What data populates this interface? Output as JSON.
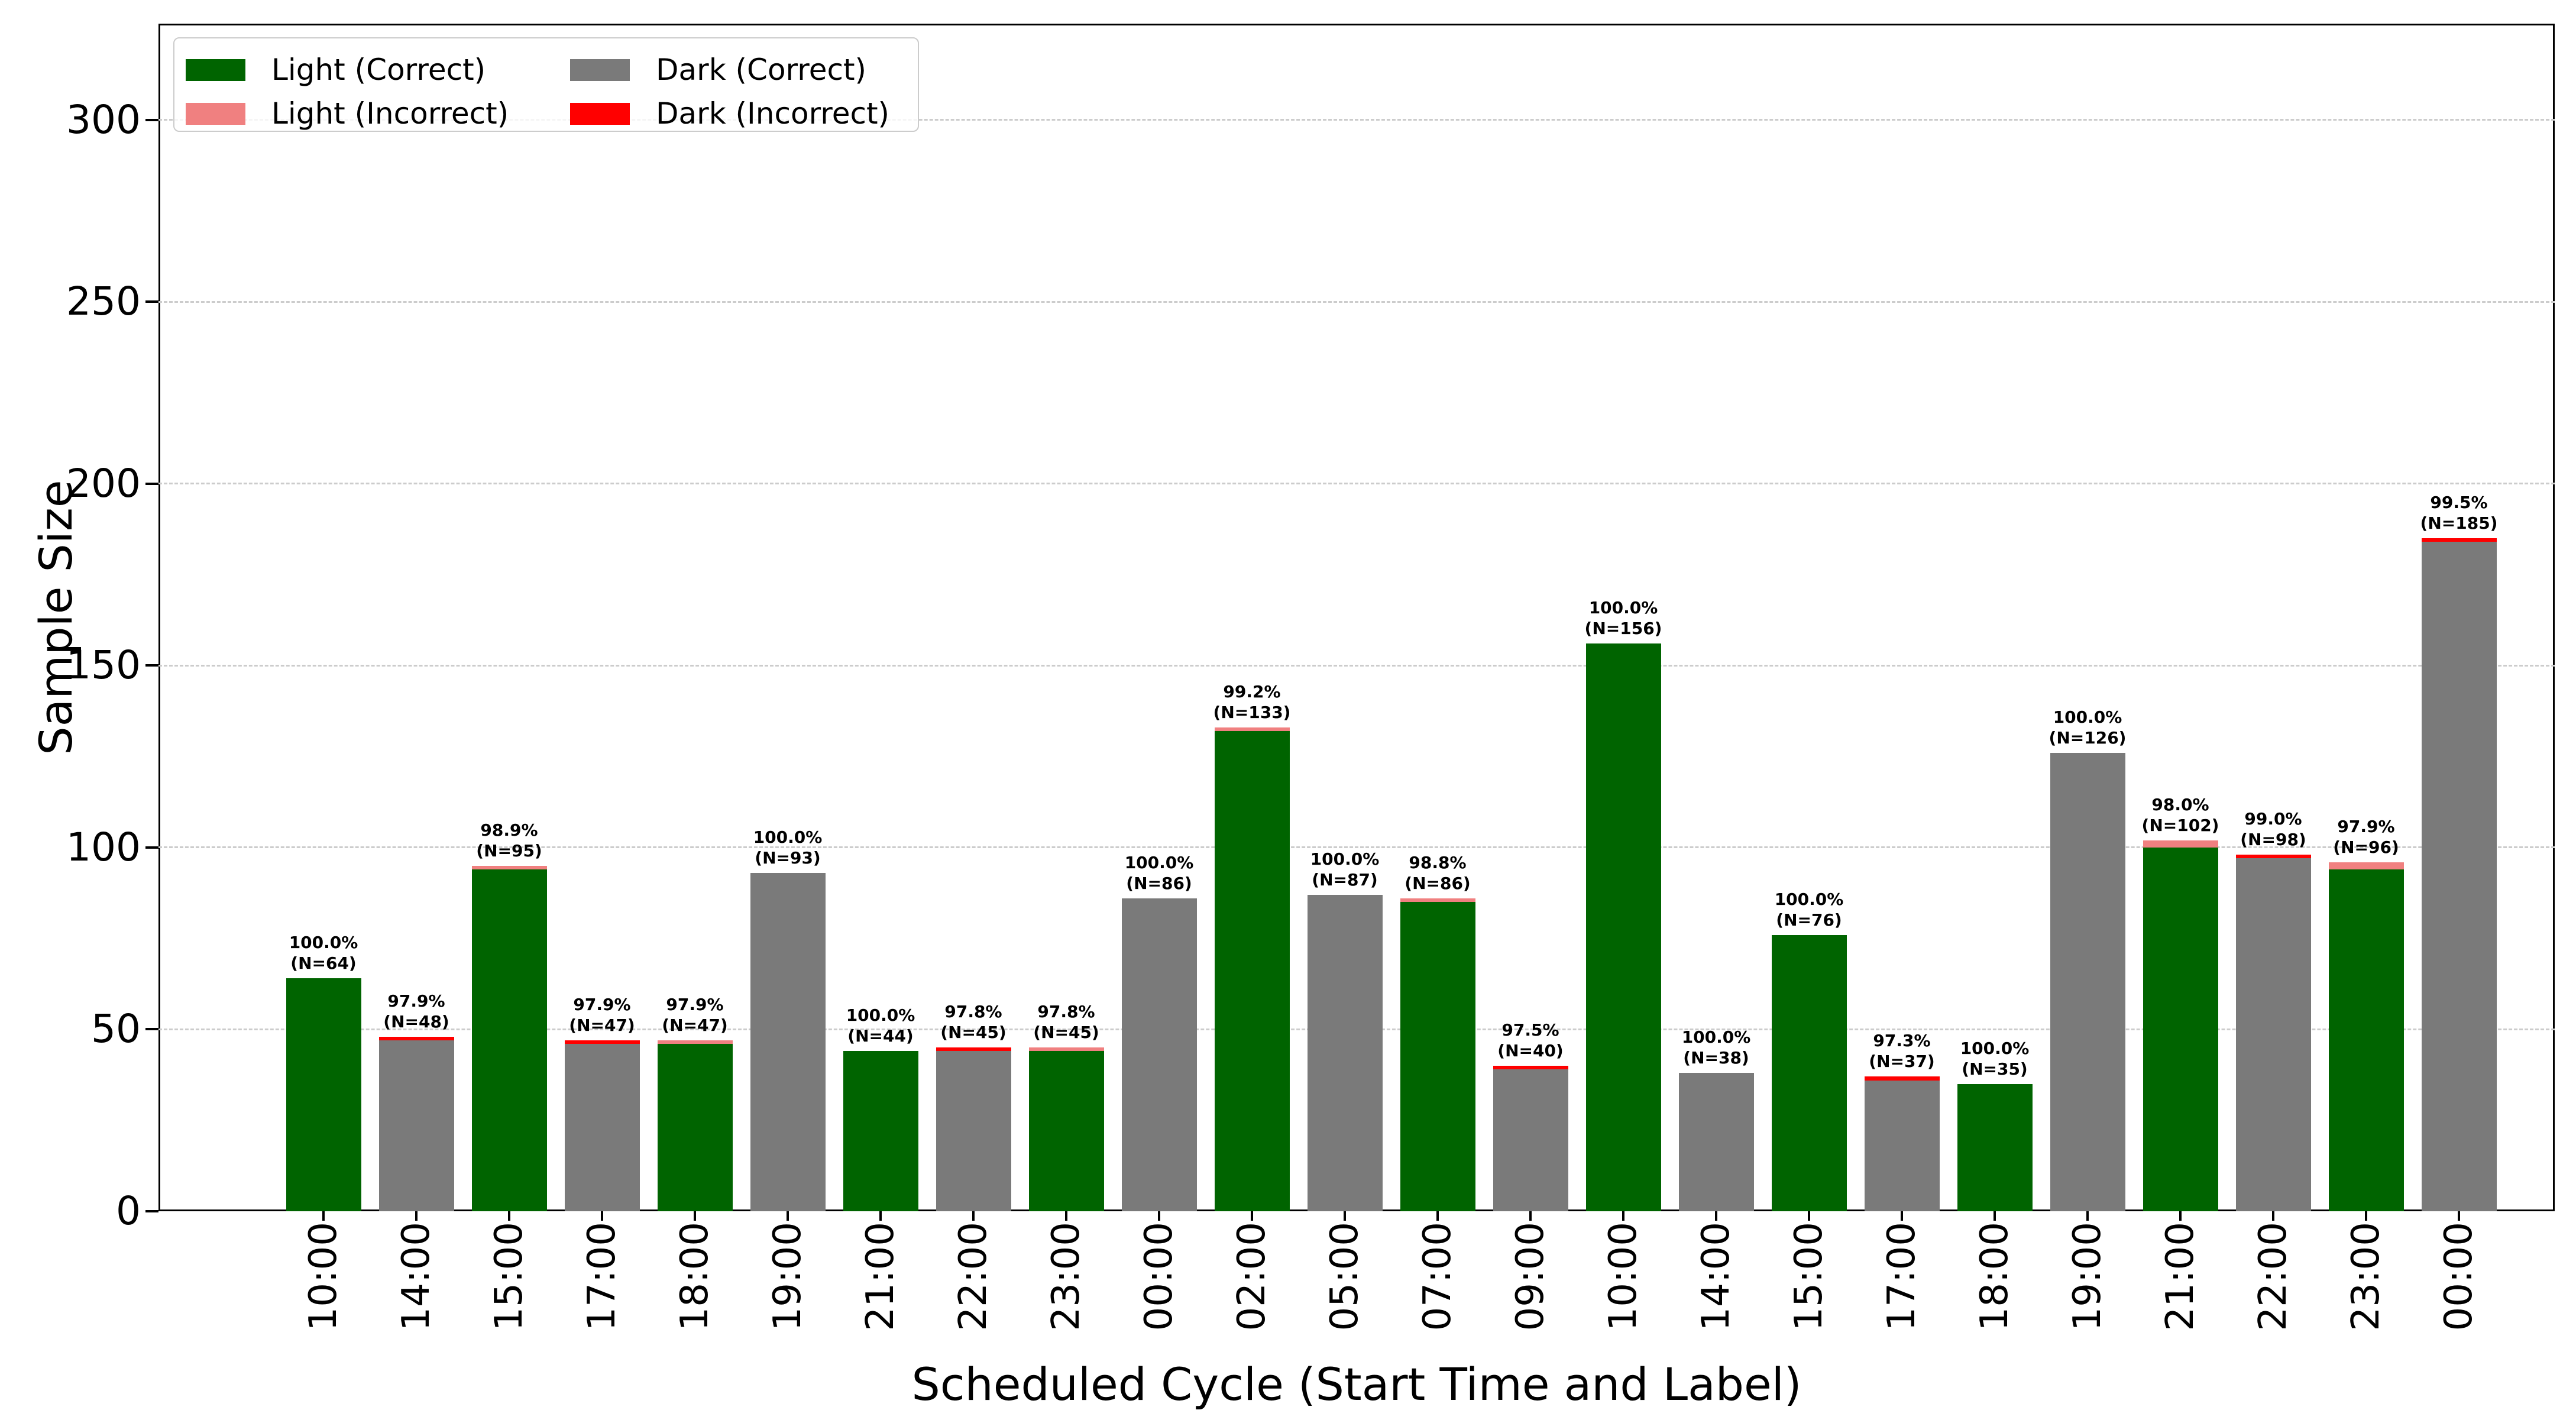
{
  "colors": {
    "light_correct": "#006400",
    "light_incorrect": "#f08080",
    "dark_correct": "#7a7a7a",
    "dark_incorrect": "#ff0000",
    "grid": "#cccccc",
    "axis": "#000000"
  },
  "chart_data": {
    "type": "bar",
    "title": "",
    "xlabel": "Scheduled Cycle (Start Time and Label)",
    "ylabel": "Sample Size",
    "ylim": [
      0,
      326
    ],
    "yticks": [
      0,
      50,
      100,
      150,
      200,
      250,
      300
    ],
    "grid": "horizontal dashed at each y tick",
    "legend": {
      "position": "upper left",
      "ncol": 2,
      "entries": [
        {
          "label": "Light (Correct)",
          "color_key": "light_correct"
        },
        {
          "label": "Light (Incorrect)",
          "color_key": "light_incorrect"
        },
        {
          "label": "Dark (Correct)",
          "color_key": "dark_correct"
        },
        {
          "label": "Dark (Incorrect)",
          "color_key": "dark_incorrect"
        }
      ]
    },
    "bars": [
      {
        "x": "10:00",
        "group": "light",
        "n": 64,
        "accuracy_pct": 100.0,
        "correct": 64,
        "incorrect": 0,
        "pct_label": "100.0%",
        "n_label": "(N=64)"
      },
      {
        "x": "14:00",
        "group": "dark",
        "n": 48,
        "accuracy_pct": 97.9,
        "correct": 47,
        "incorrect": 1,
        "pct_label": "97.9%",
        "n_label": "(N=48)"
      },
      {
        "x": "15:00",
        "group": "light",
        "n": 95,
        "accuracy_pct": 98.9,
        "correct": 94,
        "incorrect": 1,
        "pct_label": "98.9%",
        "n_label": "(N=95)"
      },
      {
        "x": "17:00",
        "group": "dark",
        "n": 47,
        "accuracy_pct": 97.9,
        "correct": 46,
        "incorrect": 1,
        "pct_label": "97.9%",
        "n_label": "(N=47)"
      },
      {
        "x": "18:00",
        "group": "light",
        "n": 47,
        "accuracy_pct": 97.9,
        "correct": 46,
        "incorrect": 1,
        "pct_label": "97.9%",
        "n_label": "(N=47)"
      },
      {
        "x": "19:00",
        "group": "dark",
        "n": 93,
        "accuracy_pct": 100.0,
        "correct": 93,
        "incorrect": 0,
        "pct_label": "100.0%",
        "n_label": "(N=93)"
      },
      {
        "x": "21:00",
        "group": "light",
        "n": 44,
        "accuracy_pct": 100.0,
        "correct": 44,
        "incorrect": 0,
        "pct_label": "100.0%",
        "n_label": "(N=44)"
      },
      {
        "x": "22:00",
        "group": "dark",
        "n": 45,
        "accuracy_pct": 97.8,
        "correct": 44,
        "incorrect": 1,
        "pct_label": "97.8%",
        "n_label": "(N=45)"
      },
      {
        "x": "23:00",
        "group": "light",
        "n": 45,
        "accuracy_pct": 97.8,
        "correct": 44,
        "incorrect": 1,
        "pct_label": "97.8%",
        "n_label": "(N=45)"
      },
      {
        "x": "00:00",
        "group": "dark",
        "n": 86,
        "accuracy_pct": 100.0,
        "correct": 86,
        "incorrect": 0,
        "pct_label": "100.0%",
        "n_label": "(N=86)"
      },
      {
        "x": "02:00",
        "group": "light",
        "n": 133,
        "accuracy_pct": 99.2,
        "correct": 132,
        "incorrect": 1,
        "pct_label": "99.2%",
        "n_label": "(N=133)"
      },
      {
        "x": "05:00",
        "group": "dark",
        "n": 87,
        "accuracy_pct": 100.0,
        "correct": 87,
        "incorrect": 0,
        "pct_label": "100.0%",
        "n_label": "(N=87)"
      },
      {
        "x": "07:00",
        "group": "light",
        "n": 86,
        "accuracy_pct": 98.8,
        "correct": 85,
        "incorrect": 1,
        "pct_label": "98.8%",
        "n_label": "(N=86)"
      },
      {
        "x": "09:00",
        "group": "dark",
        "n": 40,
        "accuracy_pct": 97.5,
        "correct": 39,
        "incorrect": 1,
        "pct_label": "97.5%",
        "n_label": "(N=40)"
      },
      {
        "x": "10:00",
        "group": "light",
        "n": 156,
        "accuracy_pct": 100.0,
        "correct": 156,
        "incorrect": 0,
        "pct_label": "100.0%",
        "n_label": "(N=156)"
      },
      {
        "x": "14:00",
        "group": "dark",
        "n": 38,
        "accuracy_pct": 100.0,
        "correct": 38,
        "incorrect": 0,
        "pct_label": "100.0%",
        "n_label": "(N=38)"
      },
      {
        "x": "15:00",
        "group": "light",
        "n": 76,
        "accuracy_pct": 100.0,
        "correct": 76,
        "incorrect": 0,
        "pct_label": "100.0%",
        "n_label": "(N=76)"
      },
      {
        "x": "17:00",
        "group": "dark",
        "n": 37,
        "accuracy_pct": 97.3,
        "correct": 36,
        "incorrect": 1,
        "pct_label": "97.3%",
        "n_label": "(N=37)"
      },
      {
        "x": "18:00",
        "group": "light",
        "n": 35,
        "accuracy_pct": 100.0,
        "correct": 35,
        "incorrect": 0,
        "pct_label": "100.0%",
        "n_label": "(N=35)"
      },
      {
        "x": "19:00",
        "group": "dark",
        "n": 126,
        "accuracy_pct": 100.0,
        "correct": 126,
        "incorrect": 0,
        "pct_label": "100.0%",
        "n_label": "(N=126)"
      },
      {
        "x": "21:00",
        "group": "light",
        "n": 102,
        "accuracy_pct": 98.0,
        "correct": 100,
        "incorrect": 2,
        "pct_label": "98.0%",
        "n_label": "(N=102)"
      },
      {
        "x": "22:00",
        "group": "dark",
        "n": 98,
        "accuracy_pct": 99.0,
        "correct": 97,
        "incorrect": 1,
        "pct_label": "99.0%",
        "n_label": "(N=98)"
      },
      {
        "x": "23:00",
        "group": "light",
        "n": 96,
        "accuracy_pct": 97.9,
        "correct": 94,
        "incorrect": 2,
        "pct_label": "97.9%",
        "n_label": "(N=96)"
      },
      {
        "x": "00:00",
        "group": "dark",
        "n": 185,
        "accuracy_pct": 99.5,
        "correct": 184,
        "incorrect": 1,
        "pct_label": "99.5%",
        "n_label": "(N=185)"
      }
    ]
  }
}
